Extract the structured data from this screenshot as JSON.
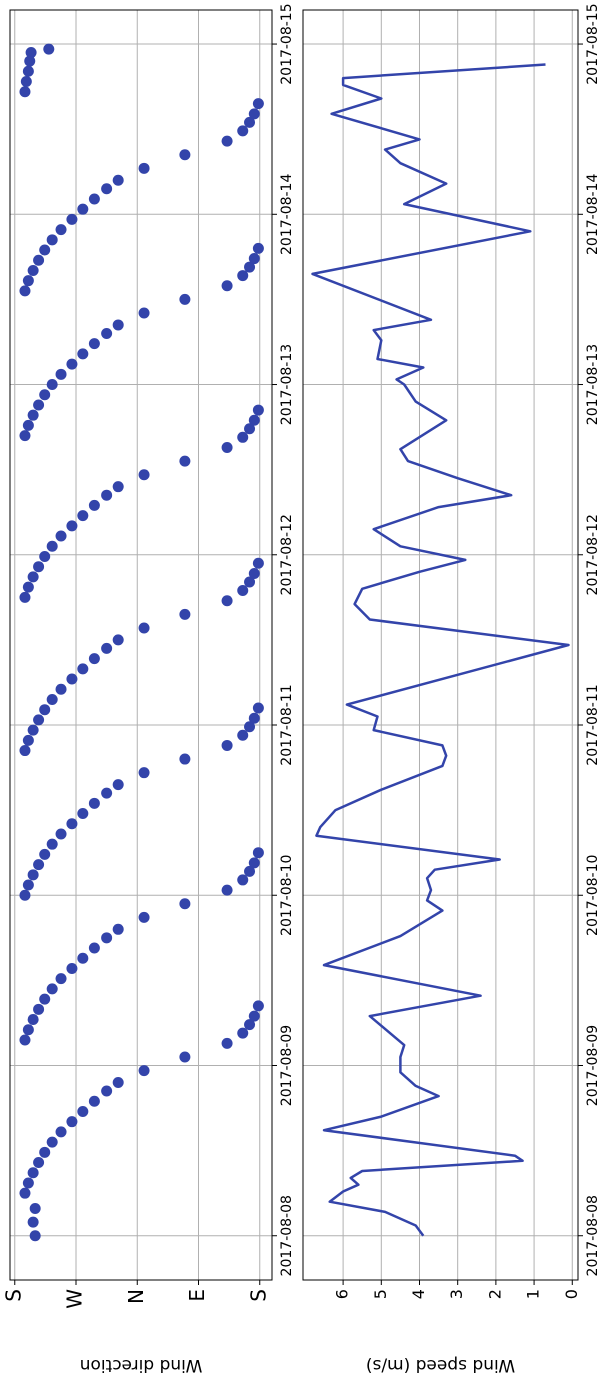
{
  "chart_data": [
    {
      "type": "scatter",
      "ylabel": "Wind direction",
      "color": "#3344aa",
      "grid": true,
      "xlim": [
        -0.26,
        7.2
      ],
      "xticks": [
        {
          "value": 0,
          "label": "2017-08-08"
        },
        {
          "value": 1,
          "label": "2017-08-09"
        },
        {
          "value": 2,
          "label": "2017-08-10"
        },
        {
          "value": 3,
          "label": "2017-08-11"
        },
        {
          "value": 4,
          "label": "2017-08-12"
        },
        {
          "value": 5,
          "label": "2017-08-13"
        },
        {
          "value": 6,
          "label": "2017-08-14"
        },
        {
          "value": 7,
          "label": "2017-08-15"
        }
      ],
      "ylim": [
        -18,
        367
      ],
      "yticks": [
        {
          "value": 0,
          "label": "S"
        },
        {
          "value": 90,
          "label": "E"
        },
        {
          "value": 180,
          "label": "N"
        },
        {
          "value": 270,
          "label": "W"
        },
        {
          "value": 360,
          "label": "S"
        }
      ],
      "x": [
        0.0,
        0.08,
        0.16,
        0.25,
        0.31,
        0.37,
        0.43,
        0.49,
        0.55,
        0.61,
        0.67,
        0.73,
        0.79,
        0.85,
        0.9,
        0.97,
        1.05,
        1.13,
        1.19,
        1.24,
        1.29,
        1.35,
        1.15,
        1.21,
        1.27,
        1.33,
        1.39,
        1.45,
        1.51,
        1.57,
        1.63,
        1.69,
        1.75,
        1.8,
        1.87,
        1.95,
        2.03,
        2.09,
        2.14,
        2.19,
        2.25,
        2.0,
        2.06,
        2.12,
        2.18,
        2.24,
        2.3,
        2.36,
        2.42,
        2.48,
        2.54,
        2.6,
        2.65,
        2.72,
        2.8,
        2.88,
        2.94,
        2.99,
        3.04,
        3.1,
        2.85,
        2.91,
        2.97,
        3.03,
        3.09,
        3.15,
        3.21,
        3.27,
        3.33,
        3.39,
        3.45,
        3.5,
        3.57,
        3.65,
        3.73,
        3.79,
        3.84,
        3.89,
        3.95,
        3.75,
        3.81,
        3.87,
        3.93,
        3.99,
        4.05,
        4.11,
        4.17,
        4.23,
        4.29,
        4.35,
        4.4,
        4.47,
        4.55,
        4.63,
        4.69,
        4.74,
        4.79,
        4.85,
        4.7,
        4.76,
        4.82,
        4.88,
        4.94,
        5.0,
        5.06,
        5.12,
        5.18,
        5.24,
        5.3,
        5.35,
        5.42,
        5.5,
        5.58,
        5.64,
        5.69,
        5.74,
        5.8,
        5.55,
        5.61,
        5.67,
        5.73,
        5.79,
        5.85,
        5.91,
        5.97,
        6.03,
        6.09,
        6.15,
        6.2,
        6.27,
        6.35,
        6.43,
        6.49,
        6.54,
        6.59,
        6.65,
        6.72,
        6.78,
        6.84,
        6.9,
        6.95,
        6.97
      ],
      "values": [
        330,
        333,
        330,
        345,
        340,
        333,
        325,
        316,
        305,
        292,
        276,
        260,
        243,
        225,
        208,
        170,
        110,
        48,
        25,
        15,
        8,
        2,
        345,
        340,
        333,
        325,
        316,
        305,
        292,
        276,
        260,
        243,
        225,
        208,
        170,
        110,
        48,
        25,
        15,
        8,
        2,
        345,
        340,
        333,
        325,
        316,
        305,
        292,
        276,
        260,
        243,
        225,
        208,
        170,
        110,
        48,
        25,
        15,
        8,
        2,
        345,
        340,
        333,
        325,
        316,
        305,
        292,
        276,
        260,
        243,
        225,
        208,
        170,
        110,
        48,
        25,
        15,
        8,
        2,
        345,
        340,
        333,
        325,
        316,
        305,
        292,
        276,
        260,
        243,
        225,
        208,
        170,
        110,
        48,
        25,
        15,
        8,
        2,
        345,
        340,
        333,
        325,
        316,
        305,
        292,
        276,
        260,
        243,
        225,
        208,
        170,
        110,
        48,
        25,
        15,
        8,
        2,
        345,
        340,
        333,
        325,
        316,
        305,
        292,
        276,
        260,
        243,
        225,
        208,
        170,
        110,
        48,
        25,
        15,
        8,
        2,
        345,
        343,
        340,
        338,
        336,
        310
      ]
    },
    {
      "type": "line",
      "ylabel": "Wind speed (m/s)",
      "color": "#3344aa",
      "grid": true,
      "xlim": [
        -0.26,
        7.2
      ],
      "xticks": [
        {
          "value": 0,
          "label": "2017-08-08"
        },
        {
          "value": 1,
          "label": "2017-08-09"
        },
        {
          "value": 2,
          "label": "2017-08-10"
        },
        {
          "value": 3,
          "label": "2017-08-11"
        },
        {
          "value": 4,
          "label": "2017-08-12"
        },
        {
          "value": 5,
          "label": "2017-08-13"
        },
        {
          "value": 6,
          "label": "2017-08-14"
        },
        {
          "value": 7,
          "label": "2017-08-15"
        }
      ],
      "ylim": [
        -0.15,
        7.05
      ],
      "yticks": [
        0,
        1,
        2,
        3,
        4,
        5,
        6
      ],
      "x": [
        0.0,
        0.06,
        0.14,
        0.2,
        0.26,
        0.3,
        0.34,
        0.38,
        0.44,
        0.47,
        0.62,
        0.7,
        0.82,
        0.88,
        0.96,
        1.05,
        1.12,
        1.29,
        1.41,
        1.59,
        1.76,
        1.91,
        1.97,
        2.03,
        2.1,
        2.15,
        2.21,
        2.35,
        2.4,
        2.5,
        2.62,
        2.76,
        2.82,
        2.88,
        2.97,
        3.05,
        3.12,
        3.47,
        3.62,
        3.71,
        3.8,
        3.9,
        3.97,
        4.05,
        4.15,
        4.28,
        4.35,
        4.45,
        4.55,
        4.62,
        4.79,
        4.9,
        5.0,
        5.03,
        5.1,
        5.15,
        5.26,
        5.32,
        5.38,
        5.65,
        5.9,
        6.06,
        6.18,
        6.3,
        6.38,
        6.44,
        6.59,
        6.68,
        6.76,
        6.8,
        6.88
      ],
      "values": [
        3.9,
        4.1,
        4.9,
        6.35,
        6.0,
        5.6,
        5.8,
        5.5,
        1.3,
        1.5,
        6.5,
        5.0,
        3.5,
        4.1,
        4.5,
        4.5,
        4.4,
        5.3,
        2.4,
        6.5,
        4.5,
        3.4,
        3.8,
        3.7,
        3.8,
        3.6,
        1.9,
        6.7,
        6.6,
        6.2,
        5.0,
        3.4,
        3.3,
        3.4,
        5.2,
        5.1,
        5.9,
        0.1,
        5.3,
        5.7,
        5.5,
        4.0,
        2.8,
        4.5,
        5.2,
        3.5,
        1.6,
        3.0,
        4.3,
        4.5,
        3.3,
        4.1,
        4.4,
        4.6,
        3.9,
        5.1,
        5.0,
        5.2,
        3.7,
        6.8,
        1.1,
        4.4,
        3.3,
        4.5,
        4.9,
        4.0,
        6.3,
        5.0,
        6.0,
        6.0,
        0.7
      ]
    }
  ]
}
